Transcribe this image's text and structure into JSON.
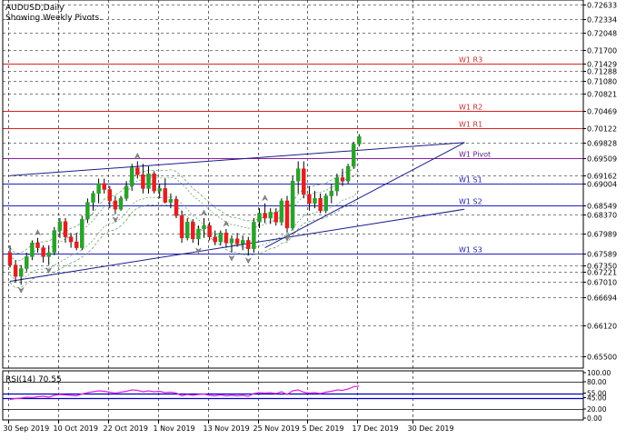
{
  "header": {
    "symbol": "AUDUSD,Daily",
    "subtitle": "Showing Weekly Pivots."
  },
  "price_axis": {
    "labels": [
      "0.72633",
      "0.72334",
      "0.72048",
      "0.71700",
      "0.71429",
      "0.71288",
      "0.71080",
      "0.70821",
      "0.70469",
      "0.70122",
      "0.69828",
      "0.69509",
      "0.69162",
      "0.69004",
      "0.68549",
      "0.68370",
      "0.67989",
      "0.67589",
      "0.67350",
      "0.67221",
      "0.67010",
      "0.66694",
      "0.66120",
      "0.65500"
    ],
    "range": [
      0.653,
      0.7268
    ]
  },
  "rsi_axis": {
    "labels": [
      "100.00",
      "80.00",
      "55.00",
      "45.00",
      "20.00",
      "0.00"
    ],
    "title": "RSI(14) 70.55",
    "value": 70.55
  },
  "dates": [
    "30 Sep 2019",
    "10 Oct 2019",
    "22 Oct 2019",
    "1 Nov 2019",
    "13 Nov 2019",
    "25 Nov 2019",
    "5 Dec 2019",
    "17 Dec 2019",
    "30 Dec 2019"
  ],
  "pivots": [
    {
      "label": "W1 R3",
      "price": 0.71429,
      "color": "#e02020",
      "text_color": "#c03030"
    },
    {
      "label": "W1 R2",
      "price": 0.70469,
      "color": "#e02020",
      "text_color": "#c03030"
    },
    {
      "label": "W1 R1",
      "price": 0.70122,
      "color": "#e02020",
      "text_color": "#c03030"
    },
    {
      "label": "W1 Pivot",
      "price": 0.69509,
      "color": "#8a1fa0",
      "text_color": "#6a1a8a"
    },
    {
      "label": "W1 S1",
      "price": 0.69004,
      "color": "#2020c0",
      "text_color": "#2020a0"
    },
    {
      "label": "W1 S2",
      "price": 0.68549,
      "color": "#2020c0",
      "text_color": "#2020a0"
    },
    {
      "label": "W1 S3",
      "price": 0.67589,
      "color": "#2020c0",
      "text_color": "#2020a0"
    }
  ],
  "colors": {
    "bull": "#2ca02c",
    "bear": "#e02020",
    "rsi": "#e020e0",
    "grid": "#000000",
    "trend": "#1c1c8c",
    "envelope": "#5a9a5a"
  },
  "chart_data": {
    "type": "candlestick",
    "symbol": "AUDUSD",
    "timeframe": "Daily",
    "x_labels": [
      "30 Sep 2019",
      "10 Oct 2019",
      "22 Oct 2019",
      "1 Nov 2019",
      "13 Nov 2019",
      "25 Nov 2019",
      "5 Dec 2019",
      "17 Dec 2019",
      "30 Dec 2019"
    ],
    "ylim": [
      0.653,
      0.7268
    ],
    "candles": [
      [
        0.676,
        0.6775,
        0.673,
        0.6735
      ],
      [
        0.6735,
        0.6745,
        0.67,
        0.6712
      ],
      [
        0.6712,
        0.6735,
        0.6695,
        0.6728
      ],
      [
        0.6728,
        0.676,
        0.6722,
        0.6752
      ],
      [
        0.6752,
        0.6785,
        0.6745,
        0.678
      ],
      [
        0.678,
        0.679,
        0.676,
        0.677
      ],
      [
        0.677,
        0.6775,
        0.674,
        0.6752
      ],
      [
        0.6752,
        0.6775,
        0.6735,
        0.676
      ],
      [
        0.676,
        0.6812,
        0.6755,
        0.6805
      ],
      [
        0.6805,
        0.683,
        0.679,
        0.6823
      ],
      [
        0.6823,
        0.683,
        0.678,
        0.6792
      ],
      [
        0.6792,
        0.68,
        0.677,
        0.6782
      ],
      [
        0.6782,
        0.68,
        0.6765,
        0.677
      ],
      [
        0.677,
        0.6835,
        0.6765,
        0.6828
      ],
      [
        0.6828,
        0.687,
        0.682,
        0.6862
      ],
      [
        0.6862,
        0.6885,
        0.6845,
        0.688
      ],
      [
        0.688,
        0.691,
        0.686,
        0.69
      ],
      [
        0.69,
        0.691,
        0.688,
        0.6888
      ],
      [
        0.6888,
        0.6895,
        0.685,
        0.6865
      ],
      [
        0.6865,
        0.6875,
        0.6838,
        0.6848
      ],
      [
        0.6848,
        0.6875,
        0.6845,
        0.687
      ],
      [
        0.687,
        0.6905,
        0.6865,
        0.6895
      ],
      [
        0.6895,
        0.694,
        0.6885,
        0.6932
      ],
      [
        0.6932,
        0.6945,
        0.691,
        0.6918
      ],
      [
        0.6918,
        0.694,
        0.688,
        0.689
      ],
      [
        0.689,
        0.6935,
        0.688,
        0.692
      ],
      [
        0.692,
        0.6925,
        0.688,
        0.6885
      ],
      [
        0.6885,
        0.69,
        0.687,
        0.689
      ],
      [
        0.689,
        0.691,
        0.686,
        0.6862
      ],
      [
        0.6862,
        0.688,
        0.685,
        0.6868
      ],
      [
        0.6868,
        0.6875,
        0.683,
        0.6835
      ],
      [
        0.6835,
        0.6845,
        0.678,
        0.679
      ],
      [
        0.679,
        0.683,
        0.6785,
        0.6822
      ],
      [
        0.6822,
        0.6828,
        0.678,
        0.6788
      ],
      [
        0.6788,
        0.6815,
        0.6775,
        0.6808
      ],
      [
        0.6808,
        0.683,
        0.679,
        0.6815
      ],
      [
        0.6815,
        0.6822,
        0.6785,
        0.6792
      ],
      [
        0.6792,
        0.6805,
        0.6775,
        0.6782
      ],
      [
        0.6782,
        0.6805,
        0.6775,
        0.68
      ],
      [
        0.68,
        0.6808,
        0.677,
        0.678
      ],
      [
        0.678,
        0.6795,
        0.676,
        0.6788
      ],
      [
        0.6788,
        0.68,
        0.6772,
        0.6778
      ],
      [
        0.6778,
        0.6795,
        0.6765,
        0.6785
      ],
      [
        0.6785,
        0.6792,
        0.6755,
        0.6768
      ],
      [
        0.6768,
        0.683,
        0.676,
        0.6822
      ],
      [
        0.6822,
        0.685,
        0.681,
        0.684
      ],
      [
        0.684,
        0.686,
        0.682,
        0.683
      ],
      [
        0.683,
        0.685,
        0.6818,
        0.6842
      ],
      [
        0.6842,
        0.685,
        0.6815,
        0.6822
      ],
      [
        0.6822,
        0.687,
        0.6815,
        0.6865
      ],
      [
        0.6865,
        0.6875,
        0.68,
        0.681
      ],
      [
        0.681,
        0.6915,
        0.6805,
        0.6905
      ],
      [
        0.6905,
        0.6945,
        0.688,
        0.693
      ],
      [
        0.693,
        0.6945,
        0.687,
        0.6878
      ],
      [
        0.6878,
        0.6895,
        0.6845,
        0.686
      ],
      [
        0.686,
        0.6885,
        0.685,
        0.687
      ],
      [
        0.687,
        0.688,
        0.684,
        0.6845
      ],
      [
        0.6845,
        0.688,
        0.684,
        0.6875
      ],
      [
        0.6875,
        0.69,
        0.686,
        0.6885
      ],
      [
        0.6885,
        0.692,
        0.6875,
        0.6912
      ],
      [
        0.6912,
        0.693,
        0.6895,
        0.6905
      ],
      [
        0.6905,
        0.694,
        0.69,
        0.6935
      ],
      [
        0.6935,
        0.6985,
        0.693,
        0.698
      ],
      [
        0.698,
        0.7,
        0.6975,
        0.6995
      ]
    ],
    "trendlines": [
      {
        "from": [
          0,
          0.6916
        ],
        "to": [
          82,
          0.6983
        ]
      },
      {
        "from": [
          0,
          0.6702
        ],
        "to": [
          82,
          0.6848
        ]
      },
      {
        "from": [
          46,
          0.677
        ],
        "to": [
          82,
          0.6983
        ]
      }
    ],
    "rsi": [
      41,
      43,
      44,
      46,
      45,
      47,
      48,
      46,
      50,
      52,
      51,
      50,
      49,
      53,
      56,
      58,
      60,
      59,
      57,
      55,
      57,
      59,
      62,
      61,
      58,
      60,
      58,
      59,
      56,
      57,
      55,
      49,
      52,
      50,
      52,
      53,
      50,
      49,
      51,
      49,
      50,
      49,
      50,
      48,
      54,
      56,
      55,
      56,
      54,
      58,
      52,
      60,
      62,
      57,
      55,
      56,
      54,
      57,
      59,
      62,
      61,
      64,
      69,
      70.55
    ]
  }
}
